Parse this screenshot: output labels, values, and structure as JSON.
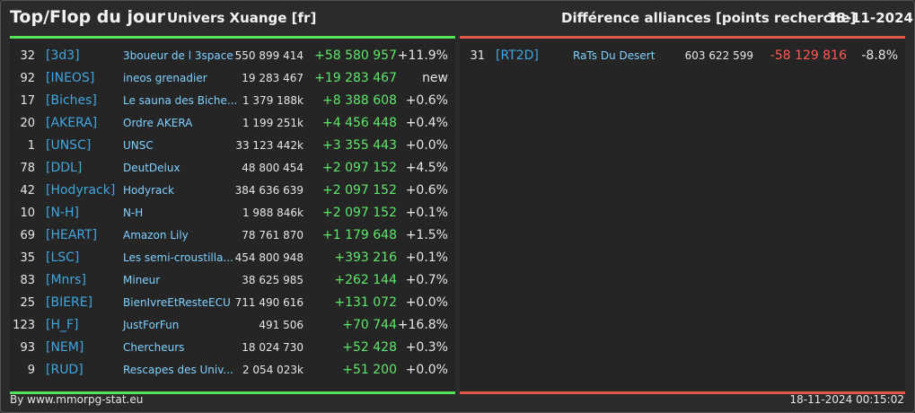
{
  "header": {
    "title": "Top/Flop du jour",
    "universe": "Univers Xuange [fr]",
    "right_title": "Différence alliances [points recherche]",
    "date": "18-11-2024"
  },
  "colors": {
    "top_accent": "#56e35a",
    "flop_accent": "#e05a4a",
    "tag": "#3fa7e0",
    "name": "#7fd0ff"
  },
  "top": [
    {
      "rank": "32",
      "tag": "[3d3]",
      "name": "3boueur de l 3space",
      "points": "550 899 414",
      "diff": "+58 580 957",
      "pct": "+11.9%"
    },
    {
      "rank": "92",
      "tag": "[INEOS]",
      "name": "ineos grenadier",
      "points": "19 283 467",
      "diff": "+19 283 467",
      "pct": "new"
    },
    {
      "rank": "17",
      "tag": "[Biches]",
      "name": "Le sauna des Biche...",
      "points": "1 379 188k",
      "diff": "+8 388 608",
      "pct": "+0.6%"
    },
    {
      "rank": "20",
      "tag": "[AKERA]",
      "name": "Ordre AKERA",
      "points": "1 199 251k",
      "diff": "+4 456 448",
      "pct": "+0.4%"
    },
    {
      "rank": "1",
      "tag": "[UNSC]",
      "name": "UNSC",
      "points": "33 123 442k",
      "diff": "+3 355 443",
      "pct": "+0.0%"
    },
    {
      "rank": "78",
      "tag": "[DDL]",
      "name": "DeutDelux",
      "points": "48 800 454",
      "diff": "+2 097 152",
      "pct": "+4.5%"
    },
    {
      "rank": "42",
      "tag": "[Hodyrack]",
      "name": "Hodyrack",
      "points": "384 636 639",
      "diff": "+2 097 152",
      "pct": "+0.6%"
    },
    {
      "rank": "10",
      "tag": "[N-H]",
      "name": "N-H",
      "points": "1 988 846k",
      "diff": "+2 097 152",
      "pct": "+0.1%"
    },
    {
      "rank": "69",
      "tag": "[HEART]",
      "name": "Amazon Lily",
      "points": "78 761 870",
      "diff": "+1 179 648",
      "pct": "+1.5%"
    },
    {
      "rank": "35",
      "tag": "[LSC]",
      "name": "Les semi-croustilla...",
      "points": "454 800 948",
      "diff": "+393 216",
      "pct": "+0.1%"
    },
    {
      "rank": "83",
      "tag": "[Mnrs]",
      "name": "Mineur",
      "points": "38 625 985",
      "diff": "+262 144",
      "pct": "+0.7%"
    },
    {
      "rank": "25",
      "tag": "[BIERE]",
      "name": "BienIvreEtResteECU",
      "points": "711 490 616",
      "diff": "+131 072",
      "pct": "+0.0%"
    },
    {
      "rank": "123",
      "tag": "[H_F]",
      "name": "JustForFun",
      "points": "491 506",
      "diff": "+70 744",
      "pct": "+16.8%"
    },
    {
      "rank": "93",
      "tag": "[NEM]",
      "name": "Chercheurs",
      "points": "18 024 730",
      "diff": "+52 428",
      "pct": "+0.3%"
    },
    {
      "rank": "9",
      "tag": "[RUD]",
      "name": "Rescapes des Univ...",
      "points": "2 054 023k",
      "diff": "+51 200",
      "pct": "+0.0%"
    }
  ],
  "flop": [
    {
      "rank": "31",
      "tag": "[RT2D]",
      "name": "RaTs Du Desert",
      "points": "603 622 599",
      "diff": "-58 129 816",
      "pct": "-8.8%"
    }
  ],
  "footer": {
    "source": "By www.mmorpg-stat.eu",
    "timestamp": "18-11-2024 00:15:02"
  }
}
